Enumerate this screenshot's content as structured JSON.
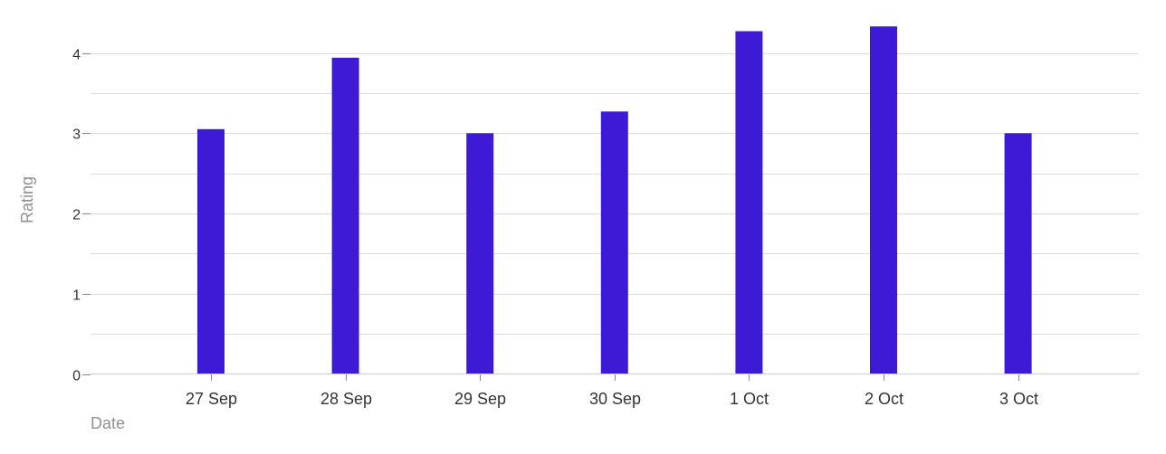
{
  "chart_data": {
    "type": "bar",
    "categories": [
      "27 Sep",
      "28 Sep",
      "29 Sep",
      "30 Sep",
      "1 Oct",
      "2 Oct",
      "3 Oct"
    ],
    "values": [
      3.05,
      3.94,
      3.0,
      3.27,
      4.27,
      4.33,
      3.0
    ],
    "xlabel": "Date",
    "ylabel": "Rating",
    "ylim": [
      0,
      4.35
    ],
    "yticks": [
      0,
      1,
      2,
      3,
      4
    ],
    "grid": true,
    "bar_color": "#3e1ad6"
  }
}
